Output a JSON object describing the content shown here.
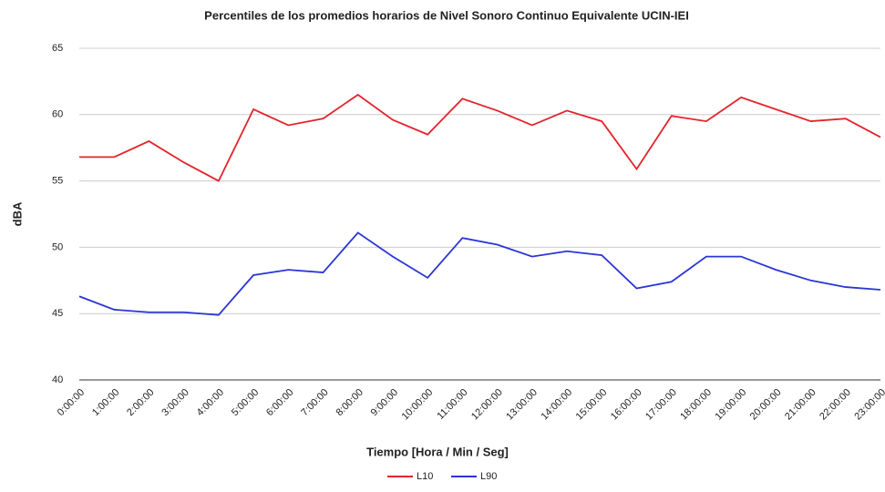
{
  "chart_data": {
    "type": "line",
    "title": "Percentiles de los promedios horarios de Nivel Sonoro Continuo Equivalente UCIN-IEI",
    "y_label": "dBA",
    "x_label": "Tiempo [Hora / Min / Seg]",
    "categories": [
      "0:00:00",
      "1:00:00",
      "2:00:00",
      "3:00:00",
      "4:00:00",
      "5:00:00",
      "6:00:00",
      "7:00:00",
      "8:00:00",
      "9:00:00",
      "10:00:00",
      "11:00:00",
      "12:00:00",
      "13:00:00",
      "14:00:00",
      "15:00:00",
      "16:00:00",
      "17:00:00",
      "18:00:00",
      "19:00:00",
      "20:00:00",
      "21:00:00",
      "22:00:00",
      "23:00:00"
    ],
    "series": [
      {
        "name": "L10",
        "color": "#e3242b",
        "values": [
          56.8,
          56.8,
          58.0,
          56.4,
          55.0,
          60.4,
          59.2,
          59.7,
          61.5,
          59.6,
          58.5,
          61.2,
          60.3,
          59.2,
          60.3,
          59.5,
          55.9,
          59.9,
          59.5,
          61.3,
          60.4,
          59.5,
          59.7,
          58.3
        ]
      },
      {
        "name": "L90",
        "color": "#2a35d6",
        "values": [
          46.3,
          45.3,
          45.1,
          45.1,
          44.9,
          47.9,
          48.3,
          48.1,
          51.1,
          49.3,
          47.7,
          50.7,
          50.2,
          49.3,
          49.7,
          49.4,
          46.9,
          47.4,
          49.3,
          49.3,
          48.3,
          47.5,
          47.0,
          46.8
        ]
      }
    ],
    "ylim": [
      40,
      65
    ],
    "yticks": [
      40,
      45,
      50,
      55,
      60,
      65
    ],
    "grid": true,
    "legend": "bottom"
  }
}
